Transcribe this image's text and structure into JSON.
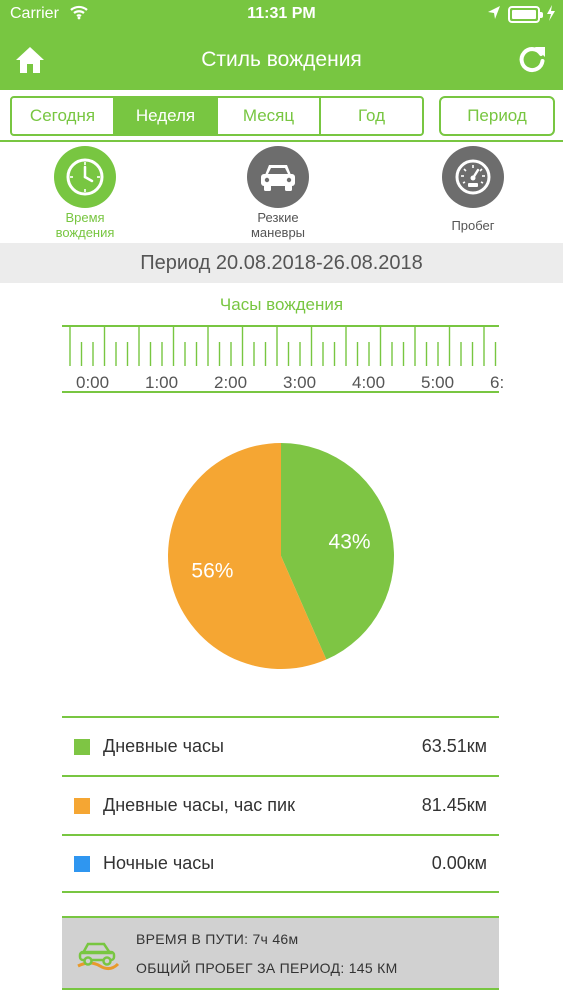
{
  "status_bar": {
    "carrier": "Carrier",
    "time": "11:31 PM"
  },
  "header": {
    "title": "Стиль вождения",
    "icons": [
      "home-icon",
      "refresh-icon"
    ]
  },
  "tabs": [
    {
      "label": "Сегодня",
      "active": false
    },
    {
      "label": "Неделя",
      "active": true
    },
    {
      "label": "Месяц",
      "active": false
    },
    {
      "label": "Год",
      "active": false
    }
  ],
  "period_button": "Период",
  "categories": [
    {
      "label": "Время вождения",
      "icon": "clock-icon",
      "active": true
    },
    {
      "label": "Резкие маневры",
      "icon": "car-icon",
      "active": false
    },
    {
      "label": "Пробег",
      "icon": "speedometer-icon",
      "active": false
    }
  ],
  "period_text": "Период 20.08.2018-26.08.2018",
  "hours_title": "Часы вождения",
  "ruler_labels": [
    "0:00",
    "1:00",
    "2:00",
    "3:00",
    "4:00",
    "5:00",
    "6:"
  ],
  "chart_data": {
    "type": "pie",
    "slices": [
      {
        "label": "Дневные часы",
        "percent": 43,
        "display": "43%",
        "color": "#7ec544"
      },
      {
        "label": "Дневные часы, час пик",
        "percent": 56,
        "display": "56%",
        "color": "#f5a633"
      }
    ]
  },
  "legend": [
    {
      "label": "Дневные часы",
      "value": "63.51км",
      "color": "#7ec544"
    },
    {
      "label": "Дневные часы, час пик",
      "value": "81.45км",
      "color": "#f5a633"
    },
    {
      "label": "Ночные часы",
      "value": "0.00км",
      "color": "#2f96f0"
    }
  ],
  "summary": {
    "time_in_transit": "ВРЕМЯ В ПУТИ: 7ч 46м",
    "total_mileage": "ОБЩИЙ ПРОБЕГ ЗА ПЕРИОД: 145 КМ"
  },
  "colors": {
    "accent": "#78c641",
    "category_inactive": "#6d6d6d"
  }
}
